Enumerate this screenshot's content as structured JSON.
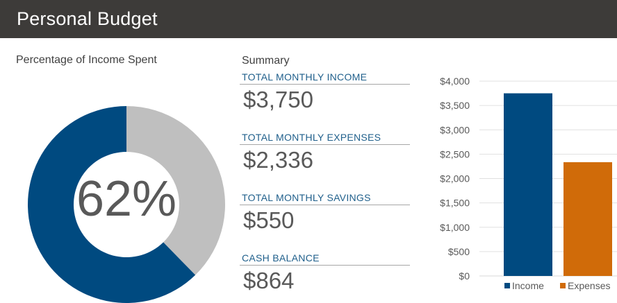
{
  "header": {
    "title": "Personal Budget"
  },
  "donut": {
    "title": "Percentage of Income Spent",
    "percent_label": "62%",
    "spent_fraction": 0.623,
    "colors": {
      "spent": "#004a80",
      "remaining": "#bfbfbf"
    }
  },
  "summary": {
    "heading": "Summary",
    "items": [
      {
        "label": "TOTAL MONTHLY INCOME",
        "value": "$3,750"
      },
      {
        "label": "TOTAL MONTHLY EXPENSES",
        "value": "$2,336"
      },
      {
        "label": "TOTAL MONTHLY SAVINGS",
        "value": "$550"
      },
      {
        "label": "CASH BALANCE",
        "value": "$864"
      }
    ]
  },
  "chart_data": {
    "type": "bar",
    "title": "",
    "xlabel": "",
    "ylabel": "",
    "categories": [
      "Income",
      "Expenses"
    ],
    "values": [
      3750,
      2336
    ],
    "colors": [
      "#004a80",
      "#d06b09"
    ],
    "ylim": [
      0,
      4000
    ],
    "yticks": [
      "$0",
      "$500",
      "$1,000",
      "$1,500",
      "$2,000",
      "$2,500",
      "$3,000",
      "$3,500",
      "$4,000"
    ],
    "legend": [
      "Income",
      "Expenses"
    ],
    "legend_position": "bottom",
    "grid": true
  }
}
